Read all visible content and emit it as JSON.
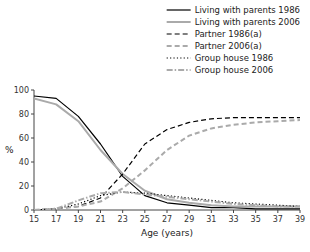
{
  "chart_data": {
    "type": "line",
    "xlabel": "Age (years)",
    "ylabel": "%",
    "x": [
      15,
      17,
      19,
      21,
      23,
      25,
      27,
      29,
      31,
      33,
      35,
      37,
      39
    ],
    "series": [
      {
        "name": "Living with parents 1986",
        "color": "#000000",
        "line_style": "solid",
        "values": [
          95,
          93,
          78,
          55,
          28,
          12,
          6,
          4,
          2,
          2,
          1,
          1,
          1
        ]
      },
      {
        "name": "Living with parents 2006",
        "color": "#aaaaaa",
        "line_style": "solid",
        "values": [
          93,
          88,
          74,
          50,
          30,
          16,
          9,
          6,
          4,
          3,
          3,
          3,
          3
        ]
      },
      {
        "name": "Partner 1986(a)",
        "color": "#000000",
        "line_style": "dashed",
        "values": [
          0,
          1,
          3,
          10,
          30,
          55,
          67,
          73,
          76,
          77,
          77,
          77,
          77
        ]
      },
      {
        "name": "Partner 2006(a)",
        "color": "#aaaaaa",
        "line_style": "dashed",
        "values": [
          0,
          1,
          3,
          7,
          18,
          33,
          50,
          62,
          68,
          71,
          73,
          74,
          75
        ]
      },
      {
        "name": "Group house 1986",
        "color": "#000000",
        "line_style": "dotted",
        "values": [
          0,
          1,
          5,
          12,
          15,
          14,
          12,
          10,
          8,
          6,
          5,
          4,
          3
        ]
      },
      {
        "name": "Group house 2006",
        "color": "#aaaaaa",
        "line_style": "dashdot",
        "values": [
          0,
          1,
          8,
          14,
          15,
          13,
          11,
          9,
          7,
          5,
          4,
          3,
          3
        ]
      }
    ],
    "xlim": [
      15,
      39
    ],
    "ylim": [
      0,
      100
    ],
    "xticks": [
      15,
      17,
      19,
      21,
      23,
      25,
      27,
      29,
      31,
      33,
      35,
      37,
      39
    ],
    "yticks": [
      0,
      20,
      40,
      60,
      80,
      100
    ],
    "grid": false,
    "legend": "upper right"
  }
}
